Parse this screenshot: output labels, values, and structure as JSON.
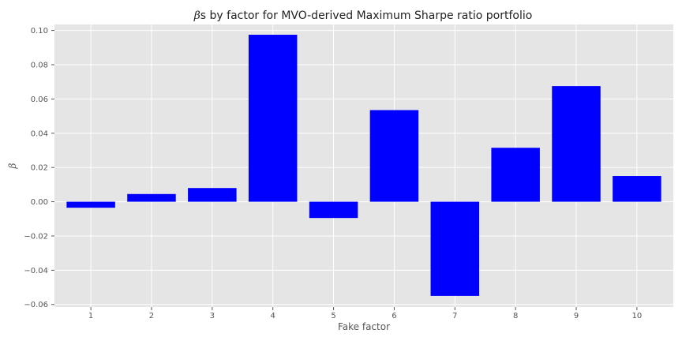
{
  "chart_data": {
    "type": "bar",
    "title_symbol": "β",
    "title_rest": "s by factor for MVO-derived Maximum Sharpe ratio portfolio",
    "xlabel": "Fake factor",
    "ylabel": "β",
    "categories": [
      "1",
      "2",
      "3",
      "4",
      "5",
      "6",
      "7",
      "8",
      "9",
      "10"
    ],
    "values": [
      -0.0035,
      0.0045,
      0.008,
      0.0975,
      -0.0095,
      0.0535,
      -0.055,
      0.0315,
      0.0675,
      0.015
    ],
    "ylim": [
      -0.0615,
      0.1035
    ],
    "yticks": [
      -0.06,
      -0.04,
      -0.02,
      0.0,
      0.02,
      0.04,
      0.06,
      0.08,
      0.1
    ],
    "ytick_labels": [
      "−0.06",
      "−0.04",
      "−0.02",
      "0.00",
      "0.02",
      "0.04",
      "0.06",
      "0.08",
      "0.10"
    ],
    "grid": true,
    "bar_color": "#0000ff",
    "plot_background": "#e5e5e5",
    "grid_color": "#ffffff"
  }
}
